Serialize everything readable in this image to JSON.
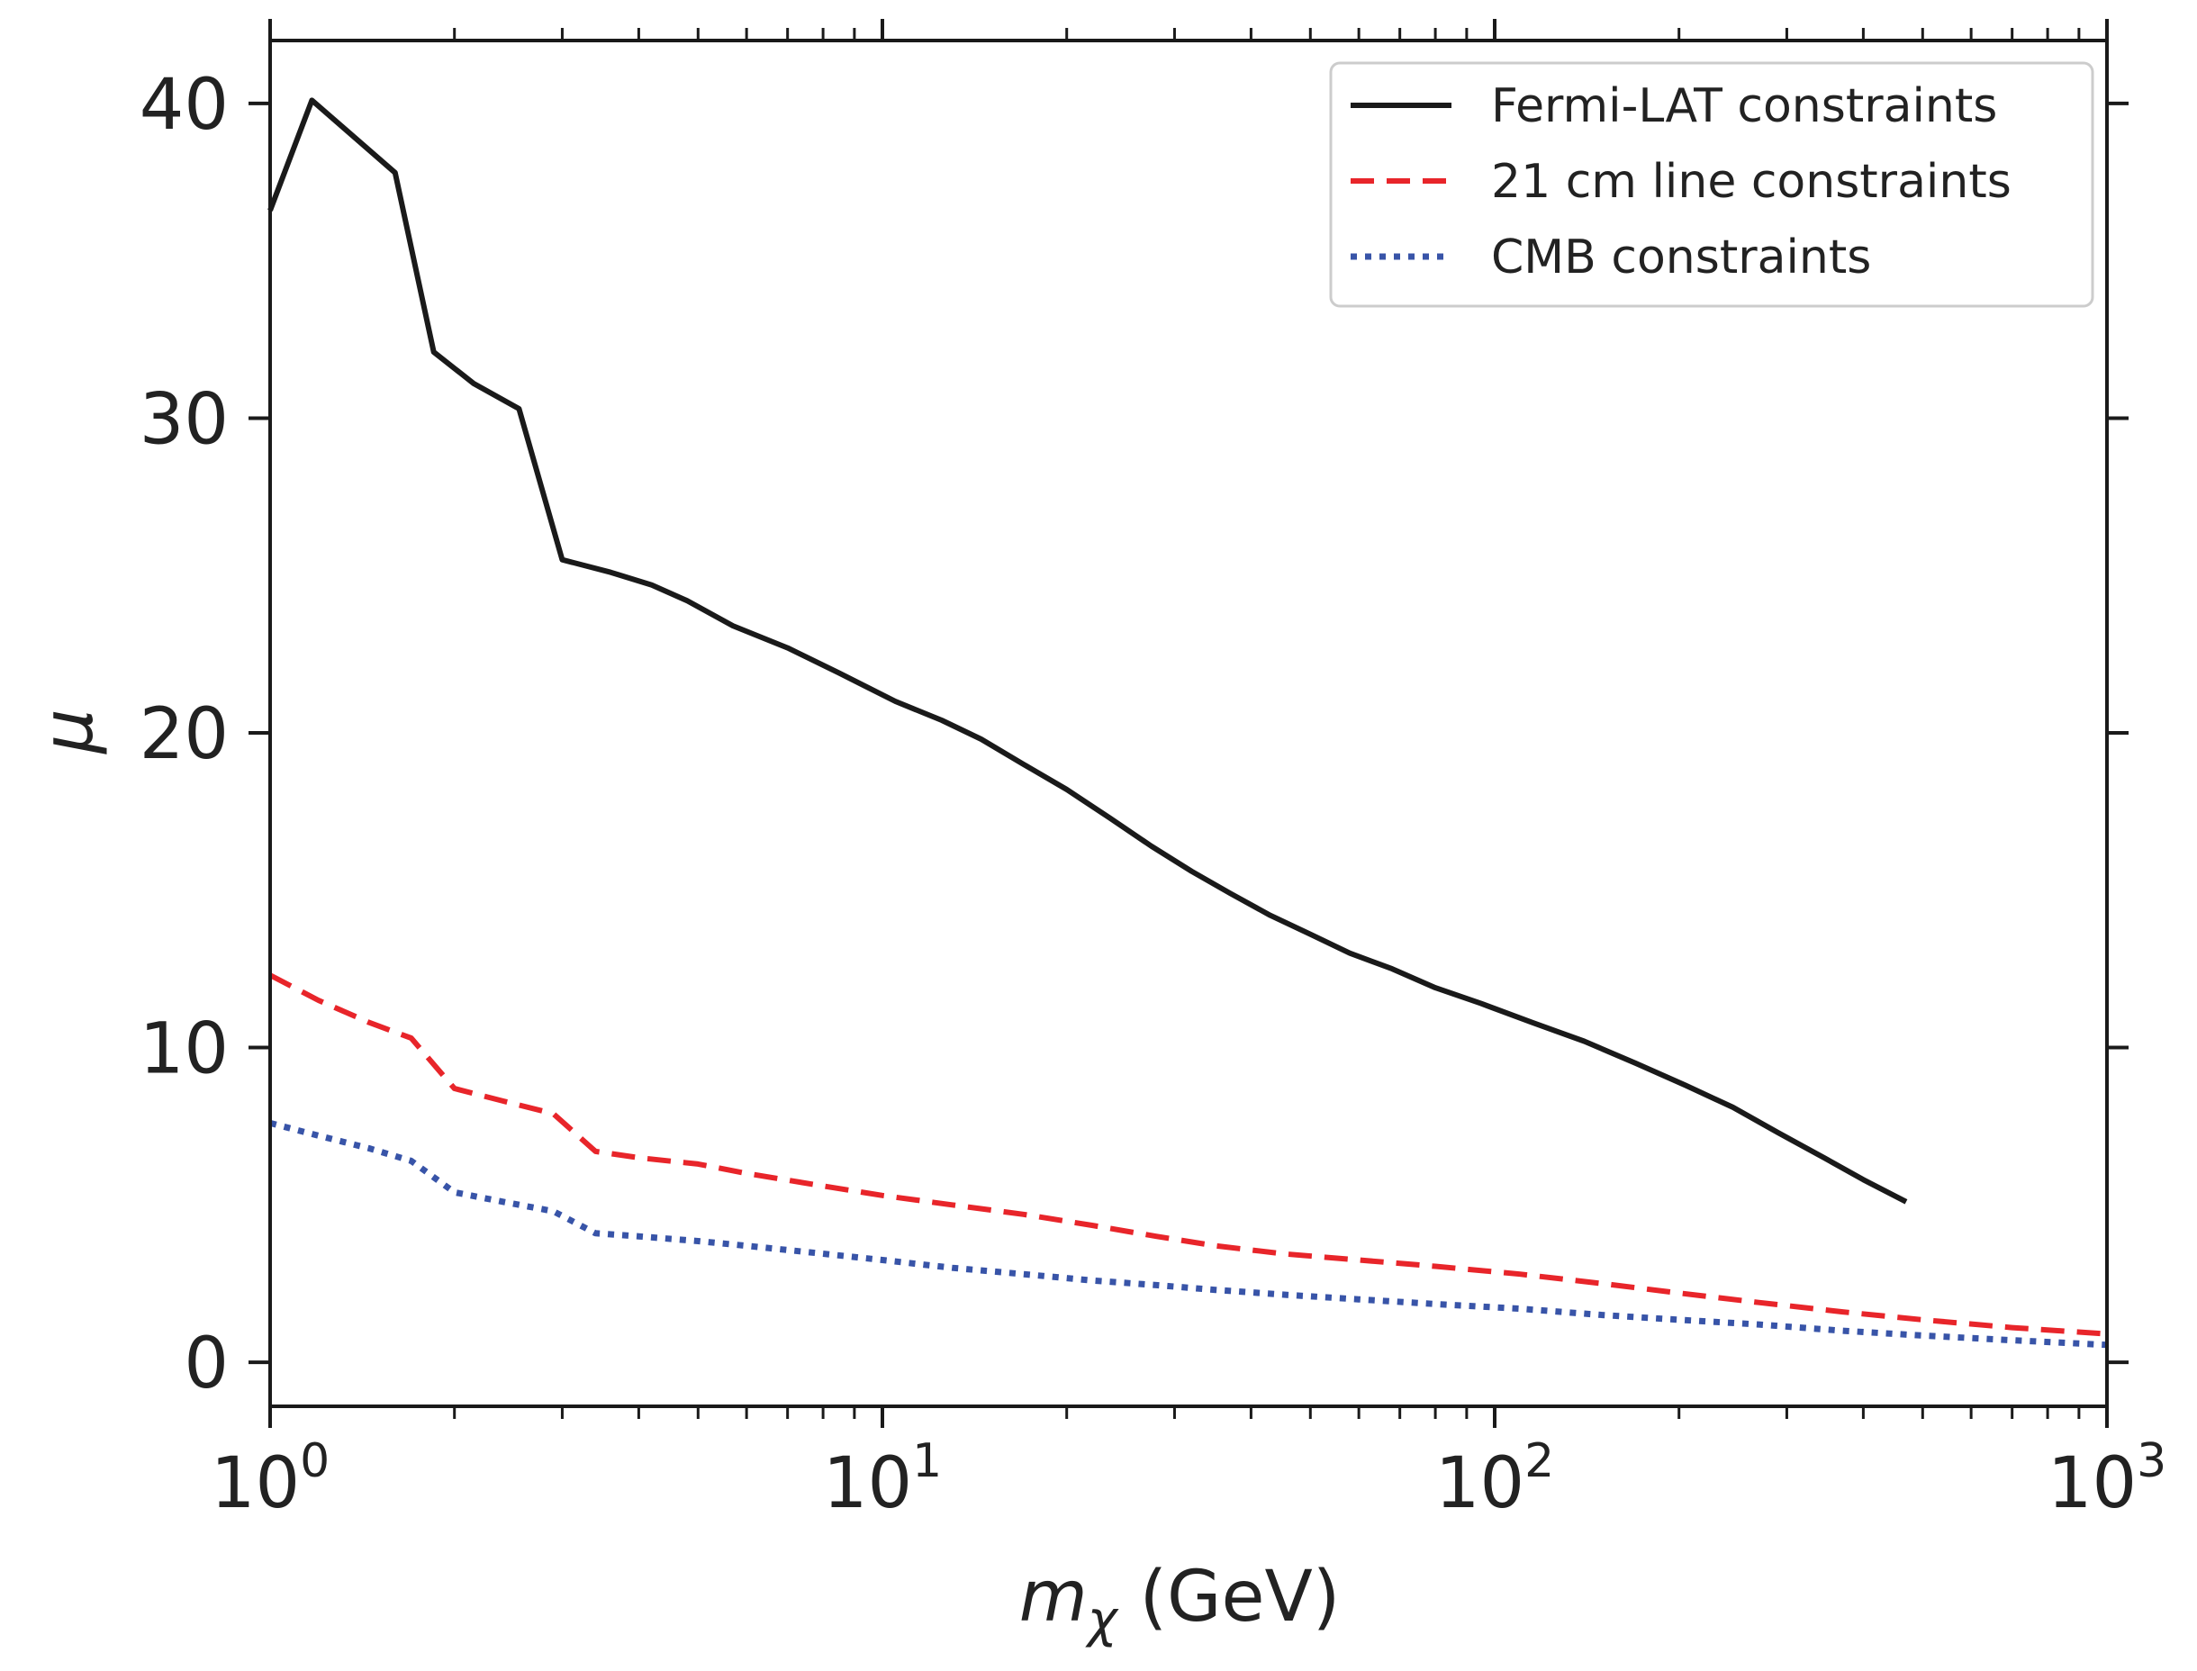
{
  "chart_data": {
    "type": "line",
    "title": "",
    "xlabel": {
      "symbol": "m",
      "subscript": "χ",
      "unit": "(GeV)"
    },
    "ylabel": "μ",
    "xscale": "log",
    "xlim": [
      1,
      1000
    ],
    "ylim": [
      -1.4,
      42
    ],
    "xticks": [
      {
        "value": 1,
        "base": "10",
        "exp": "0"
      },
      {
        "value": 10,
        "base": "10",
        "exp": "1"
      },
      {
        "value": 100,
        "base": "10",
        "exp": "2"
      },
      {
        "value": 1000,
        "base": "10",
        "exp": "3"
      }
    ],
    "yticks": [
      {
        "value": 0,
        "label": "0"
      },
      {
        "value": 10,
        "label": "10"
      },
      {
        "value": 20,
        "label": "20"
      },
      {
        "value": 30,
        "label": "30"
      },
      {
        "value": 40,
        "label": "40"
      }
    ],
    "legend_position": "upper-right",
    "series": [
      {
        "name": "Fermi-LAT constraints",
        "color": "#1a1a1a",
        "style": "solid",
        "x": [
          1.0,
          1.17,
          1.6,
          1.85,
          2.15,
          2.55,
          3.0,
          3.6,
          4.2,
          4.8,
          5.7,
          7.0,
          8.5,
          10.5,
          12.5,
          14.5,
          17.0,
          20.0,
          23.5,
          27.5,
          32.0,
          37.0,
          43.0,
          50.0,
          58.0,
          68.0,
          80.0,
          95.0,
          115.0,
          140.0,
          170.0,
          205.0,
          245.0,
          290.0,
          345.0,
          400.0,
          470.0
        ],
        "y": [
          36.6,
          40.1,
          37.8,
          32.1,
          31.1,
          30.3,
          25.5,
          25.1,
          24.7,
          24.2,
          23.4,
          22.7,
          21.9,
          21.0,
          20.4,
          19.8,
          19.0,
          18.2,
          17.3,
          16.4,
          15.6,
          14.9,
          14.2,
          13.6,
          13.0,
          12.5,
          11.9,
          11.4,
          10.8,
          10.2,
          9.5,
          8.8,
          8.1,
          7.3,
          6.5,
          5.8,
          5.1
        ]
      },
      {
        "name": "21 cm line constraints",
        "color": "#e8252a",
        "style": "dashed",
        "x": [
          1.0,
          1.2,
          1.45,
          1.7,
          2.0,
          2.4,
          2.9,
          3.4,
          4.0,
          5.0,
          6.0,
          8.0,
          10.0,
          13.0,
          17.0,
          22.0,
          28.0,
          35.0,
          45.0,
          60.0,
          80.0,
          110.0,
          150.0,
          200.0,
          270.0,
          370.0,
          500.0,
          700.0,
          1000.0
        ],
        "y": [
          12.3,
          11.5,
          10.8,
          10.3,
          8.7,
          8.3,
          7.9,
          6.7,
          6.5,
          6.3,
          6.0,
          5.6,
          5.3,
          5.0,
          4.7,
          4.35,
          4.0,
          3.7,
          3.45,
          3.25,
          3.05,
          2.8,
          2.5,
          2.2,
          1.9,
          1.6,
          1.35,
          1.1,
          0.9
        ]
      },
      {
        "name": "CMB constraints",
        "color": "#3854a8",
        "style": "dotted",
        "x": [
          1.0,
          1.2,
          1.45,
          1.7,
          2.0,
          2.4,
          2.9,
          3.4,
          4.0,
          5.0,
          6.0,
          8.0,
          10.0,
          13.0,
          17.0,
          22.0,
          28.0,
          35.0,
          45.0,
          60.0,
          80.0,
          110.0,
          150.0,
          200.0,
          270.0,
          370.0,
          500.0,
          700.0,
          1000.0
        ],
        "y": [
          7.6,
          7.2,
          6.8,
          6.4,
          5.4,
          5.1,
          4.8,
          4.1,
          4.0,
          3.85,
          3.7,
          3.45,
          3.25,
          3.0,
          2.8,
          2.6,
          2.45,
          2.3,
          2.15,
          2.0,
          1.85,
          1.7,
          1.5,
          1.35,
          1.2,
          1.0,
          0.85,
          0.7,
          0.55
        ]
      }
    ]
  }
}
